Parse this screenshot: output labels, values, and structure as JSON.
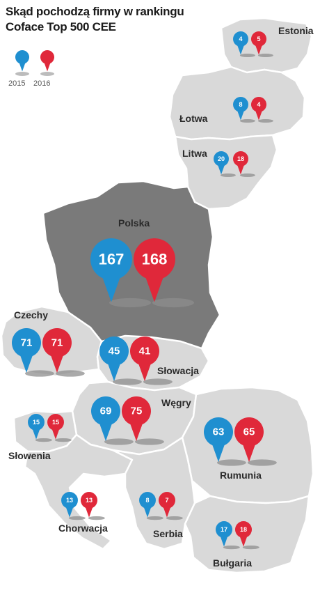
{
  "title_line1": "Skąd pochodzą firmy w rankingu",
  "title_line2": "Coface Top 500 CEE",
  "legend": {
    "year_a": "2015",
    "year_b": "2016",
    "color_a": "#1f8fd0",
    "color_b": "#e0283a"
  },
  "colors": {
    "land": "#d9d9d9",
    "poland": "#7a7a7a",
    "border": "#ffffff",
    "shadow": "#8e8e8e"
  },
  "countries": [
    {
      "id": "estonia",
      "name": "Estonia",
      "v2015": "4",
      "v2016": "5"
    },
    {
      "id": "lotwa",
      "name": "Łotwa",
      "v2015": "8",
      "v2016": "4"
    },
    {
      "id": "litwa",
      "name": "Litwa",
      "v2015": "20",
      "v2016": "18"
    },
    {
      "id": "polska",
      "name": "Polska",
      "v2015": "167",
      "v2016": "168"
    },
    {
      "id": "czechy",
      "name": "Czechy",
      "v2015": "71",
      "v2016": "71"
    },
    {
      "id": "slowacja",
      "name": "Słowacja",
      "v2015": "45",
      "v2016": "41"
    },
    {
      "id": "wegry",
      "name": "Węgry",
      "v2015": "69",
      "v2016": "75"
    },
    {
      "id": "slowenia",
      "name": "Słowenia",
      "v2015": "15",
      "v2016": "15"
    },
    {
      "id": "rumunia",
      "name": "Rumunia",
      "v2015": "63",
      "v2016": "65"
    },
    {
      "id": "chorwacja",
      "name": "Chorwacja",
      "v2015": "13",
      "v2016": "13"
    },
    {
      "id": "serbia",
      "name": "Serbia",
      "v2015": "8",
      "v2016": "7"
    },
    {
      "id": "bulgaria",
      "name": "Bułgaria",
      "v2015": "17",
      "v2016": "18"
    }
  ]
}
